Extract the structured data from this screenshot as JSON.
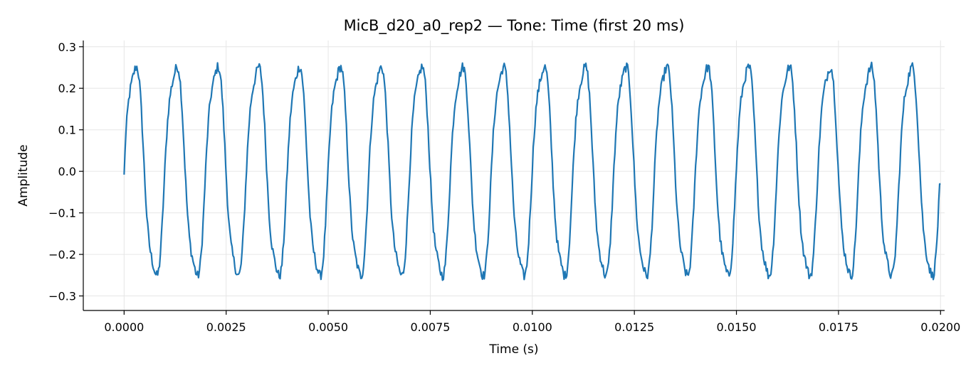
{
  "chart_data": {
    "type": "line",
    "title": "MicB_d20_a0_rep2 — Tone: Time (first 20 ms)",
    "xlabel": "Time (s)",
    "ylabel": "Amplitude",
    "xlim": [
      -0.001,
      0.0201
    ],
    "ylim": [
      -0.335,
      0.315
    ],
    "grid": true,
    "x_ticks": [
      0.0,
      0.0025,
      0.005,
      0.0075,
      0.01,
      0.0125,
      0.015,
      0.0175,
      0.02
    ],
    "x_tick_labels": [
      "0.0000",
      "0.0025",
      "0.0050",
      "0.0075",
      "0.0100",
      "0.0125",
      "0.0150",
      "0.0175",
      "0.0200"
    ],
    "y_ticks": [
      -0.3,
      -0.2,
      -0.1,
      0.0,
      0.1,
      0.2,
      0.3
    ],
    "y_tick_labels": [
      "−0.3",
      "−0.2",
      "−0.1",
      "0.0",
      "0.1",
      "0.2",
      "0.3"
    ],
    "series": [
      {
        "color": "#1f77b4",
        "signal": {
          "x_start": 0.0,
          "x_end": 0.02,
          "frequency_hz": 1000,
          "amplitude": 0.26,
          "initial_value": -0.008,
          "final_value": -0.03,
          "noise": 0.012
        }
      }
    ]
  }
}
